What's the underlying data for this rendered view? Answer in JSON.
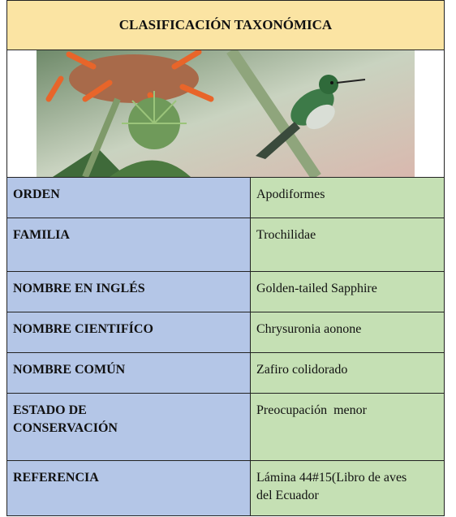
{
  "header": {
    "title": "CLASIFICACIÓN TAXONÓMICA"
  },
  "table": {
    "rows": [
      [
        "ORDEN",
        "Apodiformes"
      ],
      [
        "FAMILIA",
        "Trochilidae"
      ],
      [
        "NOMBRE EN INGLÉS",
        "Golden-tailed Sapphire"
      ],
      [
        "NOMBRE CIENTIFÍCO",
        "Chrysuronia aonone"
      ],
      [
        "NOMBRE COMÚN",
        "Zafiro colidorado"
      ],
      [
        "ESTADO DE CONSERVACIÓN",
        "Preocupación  menor"
      ],
      [
        "REFERENCIA",
        "Lámina 44#15(Libro de aves del Ecuador"
      ]
    ]
  }
}
